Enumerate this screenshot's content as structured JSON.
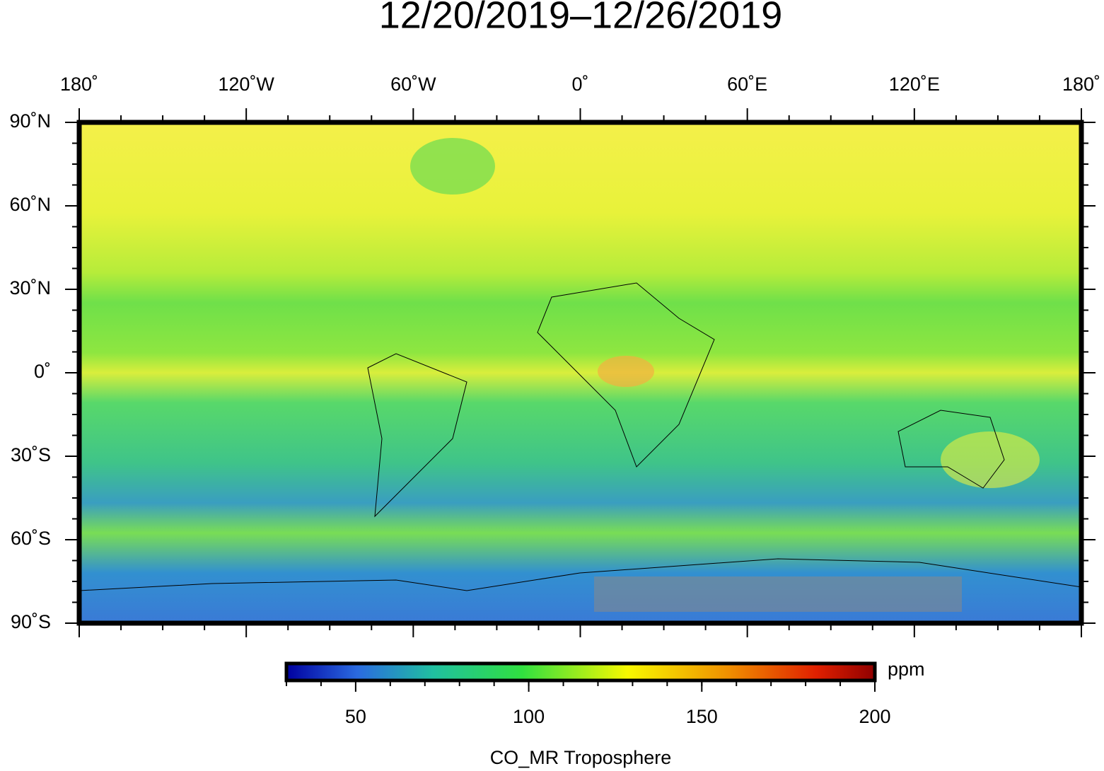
{
  "map": {
    "title": "12/20/2019–12/26/2019",
    "lon_labels": [
      "180˚",
      "120˚W",
      "60˚W",
      "0˚",
      "60˚E",
      "120˚E",
      "180˚"
    ],
    "lat_labels": [
      "90˚N",
      "60˚N",
      "30˚N",
      "0˚",
      "30˚S",
      "60˚S",
      "90˚S"
    ],
    "colorbar": {
      "range": [
        30,
        200
      ],
      "ticks": [
        50,
        100,
        150,
        200
      ],
      "unit": "ppm",
      "label": "CO_MR Troposphere"
    }
  }
}
